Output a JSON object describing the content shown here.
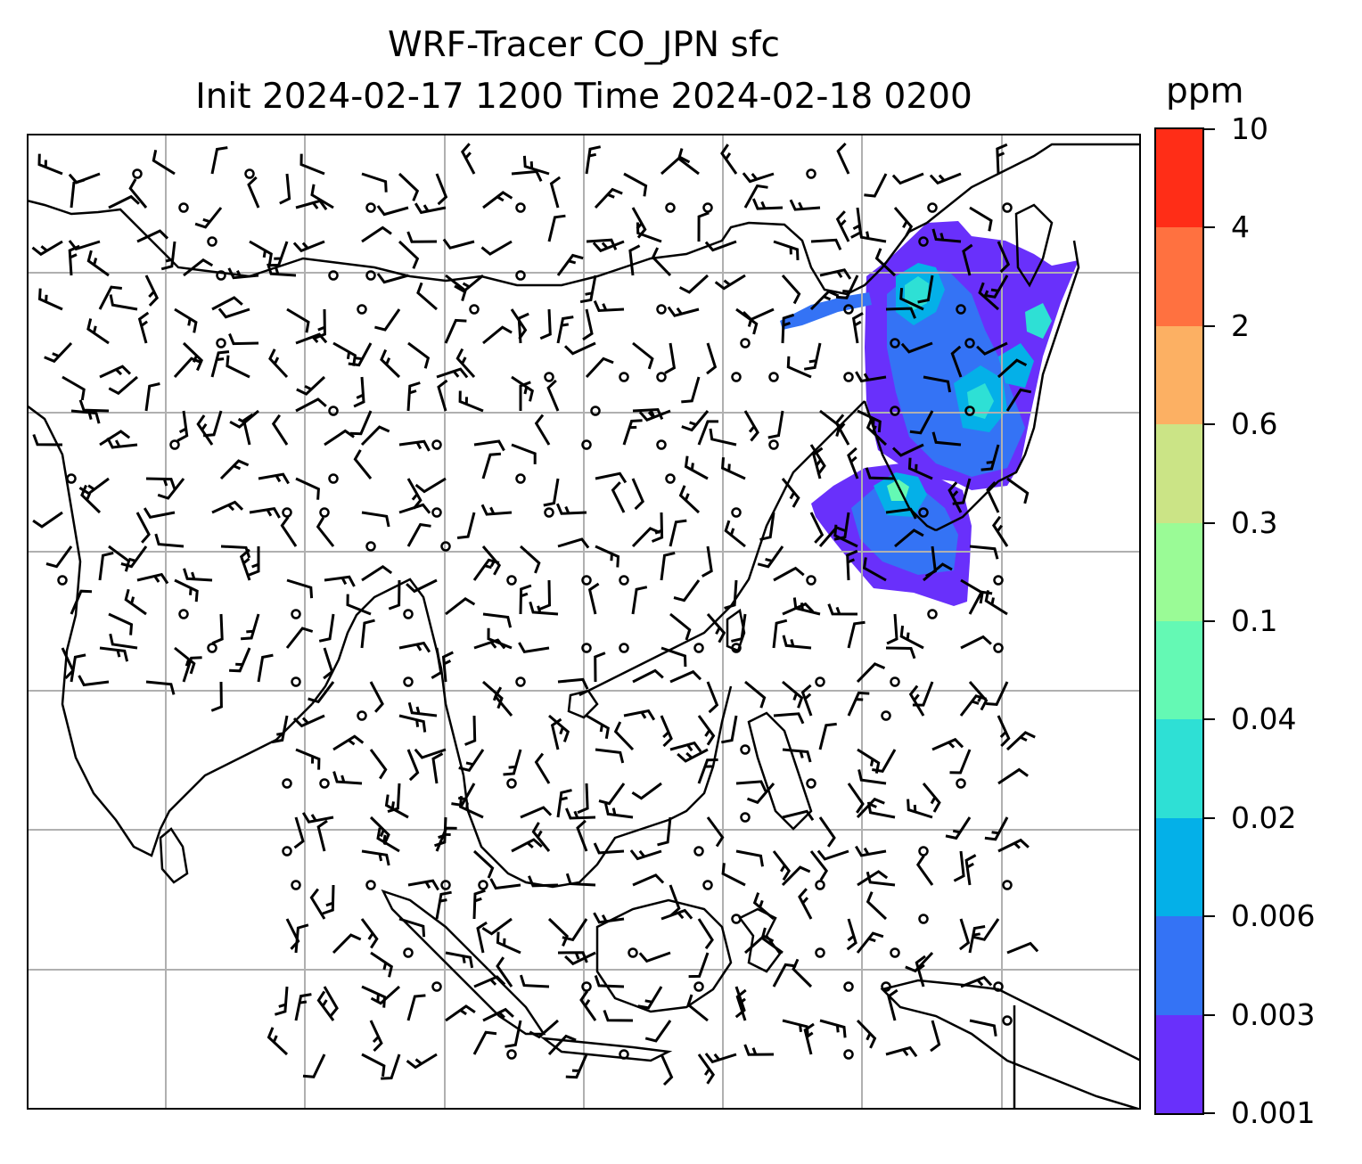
{
  "title": {
    "line1": "WRF-Tracer CO_JPN sfc",
    "line2": "Init 2024-02-17 1200 Time 2024-02-18 0200"
  },
  "colorbar": {
    "unit": "ppm",
    "ticks": [
      "0.001",
      "0.003",
      "0.006",
      "0.02",
      "0.04",
      "0.1",
      "0.3",
      "0.6",
      "2",
      "4",
      "10"
    ],
    "colors": [
      "#6930fb",
      "#3473f5",
      "#04b0e8",
      "#2ee0d5",
      "#64f9b4",
      "#9afb96",
      "#cbe486",
      "#fcb063",
      "#ff7140",
      "#ff2d17"
    ]
  },
  "map": {
    "gridlines": true,
    "tracer_field_colors": [
      "#6930fb",
      "#3473f5",
      "#04b0e8",
      "#2ee0d5",
      "#64f9b4"
    ],
    "coastline_color": "#000000",
    "grid_color": "#b0b0b0"
  }
}
